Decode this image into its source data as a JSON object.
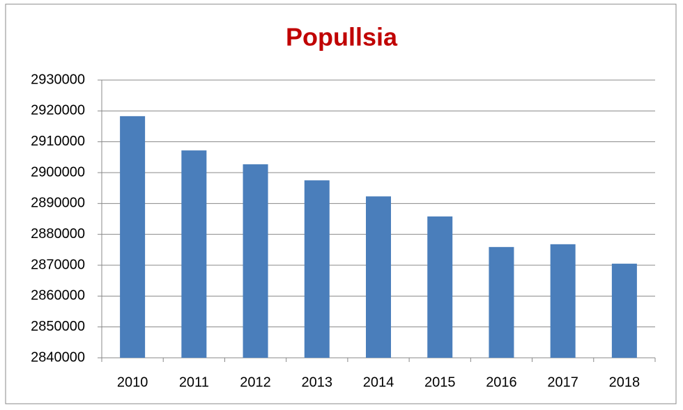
{
  "chart_data": {
    "type": "bar",
    "title": "Popullsia",
    "categories": [
      "2010",
      "2011",
      "2012",
      "2013",
      "2014",
      "2015",
      "2016",
      "2017",
      "2018"
    ],
    "values": [
      2918300,
      2907200,
      2902700,
      2897500,
      2892300,
      2885800,
      2875900,
      2876800,
      2870500
    ],
    "color": "#4a7ebb",
    "ylim": [
      2840000,
      2930000
    ],
    "yticks": [
      2840000,
      2850000,
      2860000,
      2870000,
      2880000,
      2890000,
      2900000,
      2910000,
      2920000,
      2930000
    ],
    "grid": true
  }
}
